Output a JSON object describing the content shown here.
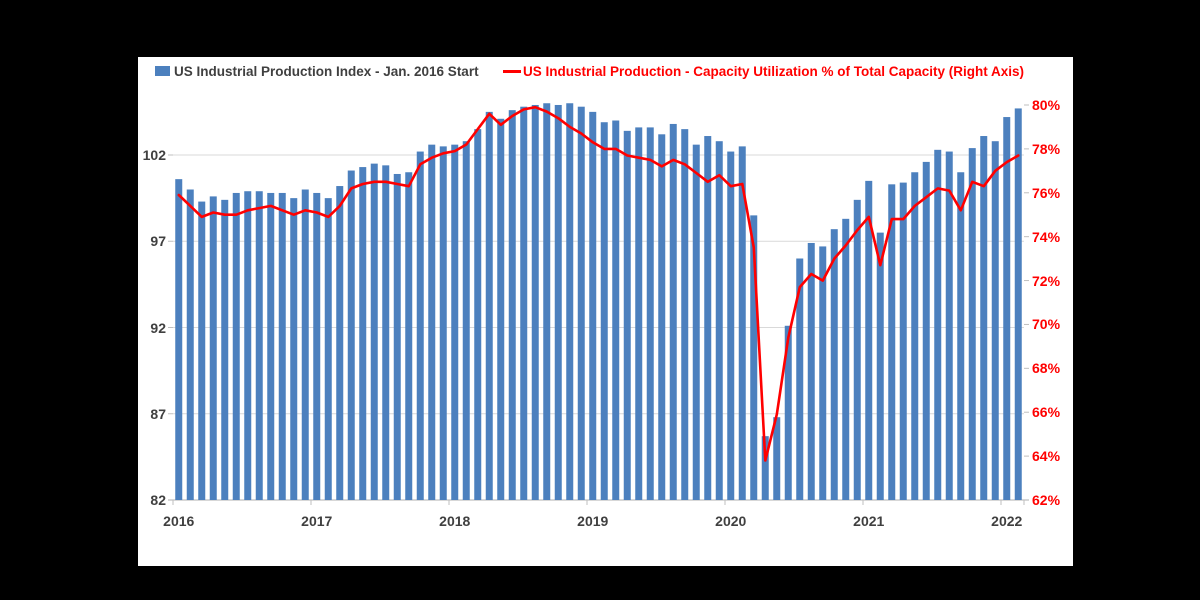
{
  "page": {
    "background": "#000000",
    "panel_background": "#ffffff"
  },
  "legend": {
    "series_bars": {
      "label": "US Industrial Production Index - Jan. 2016 Start",
      "color": "#4c80be",
      "text_color": "#404040"
    },
    "series_line": {
      "label": "US Industrial Production - Capacity Utilization % of Total Capacity (Right Axis)",
      "color": "#ff0000",
      "text_color": "#ff0000"
    }
  },
  "chart_data": {
    "type": "combo-bar-line",
    "title": "",
    "x": [
      "2016-01",
      "2016-02",
      "2016-03",
      "2016-04",
      "2016-05",
      "2016-06",
      "2016-07",
      "2016-08",
      "2016-09",
      "2016-10",
      "2016-11",
      "2016-12",
      "2017-01",
      "2017-02",
      "2017-03",
      "2017-04",
      "2017-05",
      "2017-06",
      "2017-07",
      "2017-08",
      "2017-09",
      "2017-10",
      "2017-11",
      "2017-12",
      "2018-01",
      "2018-02",
      "2018-03",
      "2018-04",
      "2018-05",
      "2018-06",
      "2018-07",
      "2018-08",
      "2018-09",
      "2018-10",
      "2018-11",
      "2018-12",
      "2019-01",
      "2019-02",
      "2019-03",
      "2019-04",
      "2019-05",
      "2019-06",
      "2019-07",
      "2019-08",
      "2019-09",
      "2019-10",
      "2019-11",
      "2019-12",
      "2020-01",
      "2020-02",
      "2020-03",
      "2020-04",
      "2020-05",
      "2020-06",
      "2020-07",
      "2020-08",
      "2020-09",
      "2020-10",
      "2020-11",
      "2020-12",
      "2021-01",
      "2021-02",
      "2021-03",
      "2021-04",
      "2021-05",
      "2021-06",
      "2021-07",
      "2021-08",
      "2021-09",
      "2021-10",
      "2021-11",
      "2021-12",
      "2022-01",
      "2022-02"
    ],
    "series": [
      {
        "name": "US Industrial Production Index - Jan. 2016 Start",
        "type": "bar",
        "axis": "left",
        "color": "#4c80be",
        "values": [
          100.6,
          100.0,
          99.3,
          99.6,
          99.4,
          99.8,
          99.9,
          99.9,
          99.8,
          99.8,
          99.5,
          100.0,
          99.8,
          99.5,
          100.2,
          101.1,
          101.3,
          101.5,
          101.4,
          100.9,
          101.0,
          102.2,
          102.6,
          102.5,
          102.6,
          102.8,
          103.5,
          104.5,
          104.1,
          104.6,
          104.8,
          104.9,
          105.0,
          104.9,
          105.0,
          104.8,
          104.5,
          103.9,
          104.0,
          103.4,
          103.6,
          103.6,
          103.2,
          103.8,
          103.5,
          102.6,
          103.1,
          102.8,
          102.2,
          102.5,
          98.5,
          85.7,
          86.8,
          92.1,
          96.0,
          96.9,
          96.7,
          97.7,
          98.3,
          99.4,
          100.5,
          97.5,
          100.3,
          100.4,
          101.0,
          101.6,
          102.3,
          102.2,
          101.0,
          102.4,
          103.1,
          102.8,
          104.2,
          104.7
        ]
      },
      {
        "name": "US Industrial Production - Capacity Utilization % of Total Capacity (Right Axis)",
        "type": "line",
        "axis": "right",
        "color": "#ff0000",
        "values": [
          75.9,
          75.4,
          74.9,
          75.1,
          75.0,
          75.0,
          75.2,
          75.3,
          75.4,
          75.2,
          75.0,
          75.2,
          75.1,
          74.9,
          75.4,
          76.2,
          76.4,
          76.5,
          76.5,
          76.4,
          76.3,
          77.3,
          77.6,
          77.8,
          77.9,
          78.2,
          78.9,
          79.6,
          79.1,
          79.5,
          79.8,
          79.9,
          79.7,
          79.4,
          79.0,
          78.7,
          78.3,
          78.0,
          78.0,
          77.7,
          77.6,
          77.5,
          77.2,
          77.5,
          77.3,
          76.9,
          76.5,
          76.8,
          76.3,
          76.4,
          73.5,
          63.8,
          65.9,
          69.4,
          71.7,
          72.3,
          72.0,
          73.0,
          73.6,
          74.3,
          74.9,
          72.7,
          74.8,
          74.8,
          75.4,
          75.8,
          76.2,
          76.1,
          75.2,
          76.5,
          76.3,
          77.0,
          77.4,
          77.7
        ]
      }
    ],
    "left_axis": {
      "ticks": [
        {
          "label": "102",
          "value": 102
        },
        {
          "label": "97",
          "value": 97
        },
        {
          "label": "92",
          "value": 92
        },
        {
          "label": "87",
          "value": 87
        },
        {
          "label": "82",
          "value": 82
        }
      ],
      "range": [
        82,
        105
      ],
      "grid": true,
      "label_color": "#404040"
    },
    "right_axis": {
      "ticks": [
        {
          "label": "80%",
          "value": 80
        },
        {
          "label": "78%",
          "value": 78
        },
        {
          "label": "76%",
          "value": 76
        },
        {
          "label": "74%",
          "value": 74
        },
        {
          "label": "72%",
          "value": 72
        },
        {
          "label": "70%",
          "value": 70
        },
        {
          "label": "68%",
          "value": 68
        },
        {
          "label": "66%",
          "value": 66
        },
        {
          "label": "64%",
          "value": 64
        },
        {
          "label": "62%",
          "value": 62
        }
      ],
      "range": [
        62,
        80
      ],
      "label_color": "#ff0000"
    },
    "x_axis": {
      "year_labels": [
        "2016",
        "2017",
        "2018",
        "2019",
        "2020",
        "2021",
        "2022"
      ],
      "label_color": "#404040"
    },
    "grid_color": "#d9d9d9",
    "axis_line_color": "#bfbfbf",
    "legend_position": "top"
  }
}
